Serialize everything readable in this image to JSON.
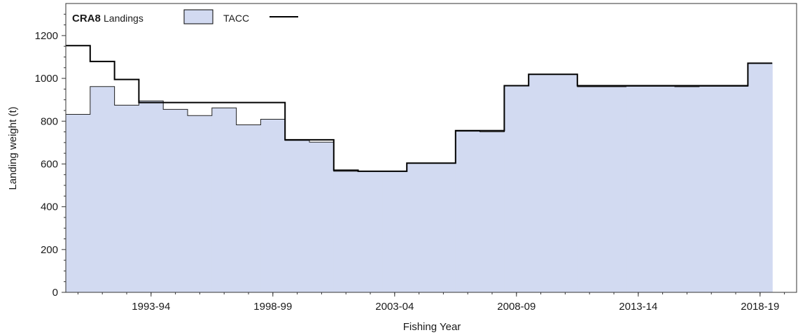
{
  "chart_data": {
    "type": "area",
    "title": "CRA8",
    "xlabel": "Fishing Year",
    "ylabel": "Landing weight (t)",
    "ylim": [
      0,
      1350
    ],
    "yticks": [
      0,
      200,
      400,
      600,
      800,
      1000,
      1200
    ],
    "xtick_labels": [
      "1993-94",
      "1998-99",
      "2003-04",
      "2008-09",
      "2013-14",
      "2018-19"
    ],
    "xtick_years": [
      1993,
      1998,
      2003,
      2008,
      2013,
      2018
    ],
    "x_range": [
      1989.5,
      2019.5
    ],
    "legend_position": "top-left",
    "years": [
      "1990-91",
      "1991-92",
      "1992-93",
      "1993-94",
      "1994-95",
      "1995-96",
      "1996-97",
      "1997-98",
      "1998-99",
      "1999-00",
      "2000-01",
      "2001-02",
      "2002-03",
      "2003-04",
      "2004-05",
      "2005-06",
      "2006-07",
      "2007-08",
      "2008-09",
      "2009-10",
      "2010-11",
      "2011-12",
      "2012-13",
      "2013-14",
      "2014-15",
      "2015-16",
      "2016-17",
      "2017-18",
      "2018-19"
    ],
    "series": [
      {
        "name": "Landings",
        "style": "filled-step",
        "color": "#d2daf1",
        "values": [
          832,
          962,
          875,
          895,
          855,
          826,
          862,
          783,
          809,
          710,
          702,
          566,
          566,
          566,
          603,
          603,
          753,
          750,
          966,
          1019,
          1019,
          961,
          961,
          963,
          963,
          961,
          963,
          963,
          1071
        ]
      },
      {
        "name": "TACC",
        "style": "step-line",
        "color": "#000000",
        "values": [
          1153,
          1079,
          995,
          887,
          887,
          887,
          887,
          887,
          887,
          713,
          713,
          571,
          566,
          566,
          604,
          604,
          756,
          756,
          966,
          1019,
          1019,
          966,
          966,
          966,
          966,
          966,
          966,
          966,
          1071
        ]
      }
    ]
  }
}
